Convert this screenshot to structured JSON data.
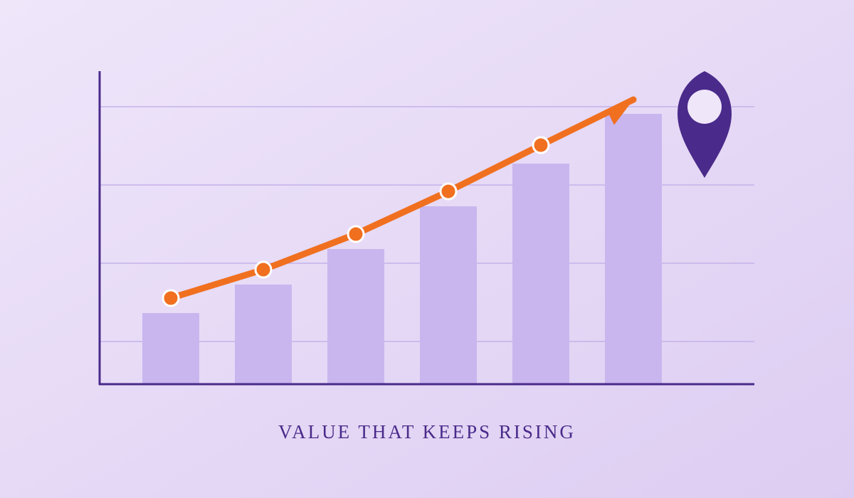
{
  "chart_data": {
    "type": "bar",
    "title": "VALUE THAT KEEPS RISING",
    "categories": [
      null,
      null,
      null,
      null,
      null,
      null
    ],
    "series": [
      {
        "type": "bar",
        "color": "#c9b6ee",
        "values": [
          10,
          14,
          19,
          25,
          31,
          38
        ]
      },
      {
        "type": "line",
        "color": "#f07020",
        "values": [
          12.1,
          16.1,
          21.1,
          27.1,
          33.6,
          40
        ]
      }
    ],
    "ylim": [
      0,
      44
    ],
    "yticks": [
      6,
      17,
      28,
      39
    ],
    "grid": true
  }
}
